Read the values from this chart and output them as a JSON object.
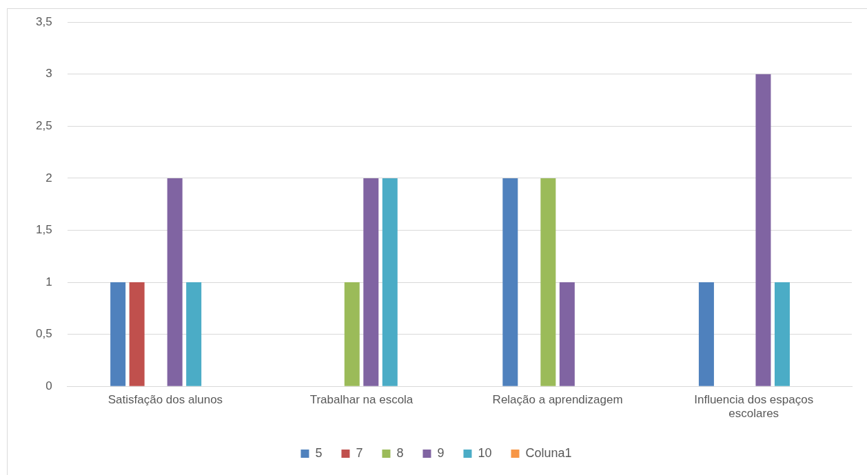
{
  "chart_data": {
    "type": "bar",
    "categories": [
      "Satisfação dos alunos",
      "Trabalhar na escola",
      "Relação a aprendizagem",
      "Influencia dos espaços escolares"
    ],
    "series": [
      {
        "name": "5",
        "color": "#4f81bd",
        "values": [
          1,
          null,
          2,
          1
        ]
      },
      {
        "name": "7",
        "color": "#c0504d",
        "values": [
          1,
          null,
          null,
          null
        ]
      },
      {
        "name": "8",
        "color": "#9bbb59",
        "values": [
          null,
          1,
          2,
          null
        ]
      },
      {
        "name": "9",
        "color": "#8064a2",
        "values": [
          2,
          2,
          1,
          3
        ]
      },
      {
        "name": "10",
        "color": "#4bacc6",
        "values": [
          1,
          2,
          null,
          1
        ]
      },
      {
        "name": "Coluna1",
        "color": "#f79646",
        "values": [
          null,
          null,
          null,
          null
        ]
      }
    ],
    "ylim": [
      0,
      3.5
    ],
    "yticks": [
      0,
      {
        "value": 0.5,
        "label": "0,5"
      },
      1,
      {
        "value": 1.5,
        "label": "1,5"
      },
      2,
      {
        "value": 2.5,
        "label": "2,5"
      },
      3,
      {
        "value": 3.5,
        "label": "3,5"
      }
    ],
    "grid": "y",
    "legend": "bottom"
  }
}
